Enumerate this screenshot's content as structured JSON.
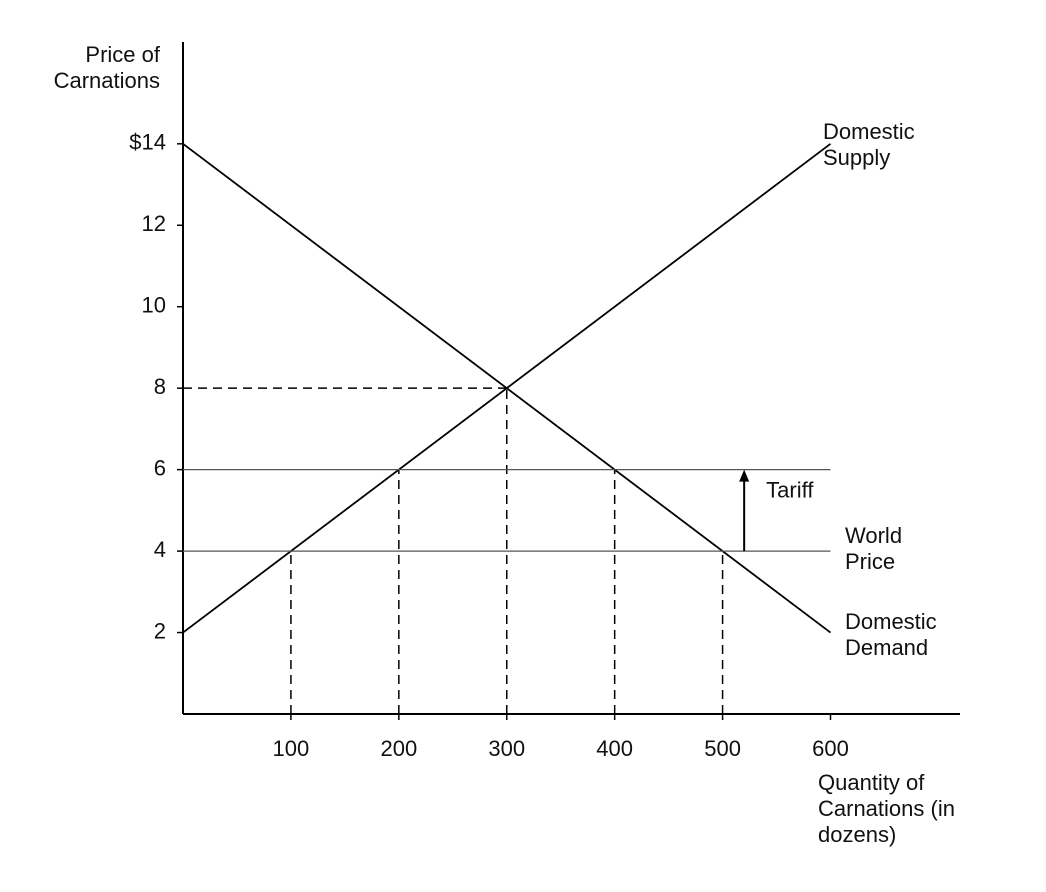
{
  "chart_data": {
    "type": "line",
    "y_label": "Price of Carnations",
    "x_label": "Quantity of Carnations (in dozens)",
    "xlim": [
      0,
      720
    ],
    "ylim": [
      0,
      16.5
    ],
    "xticks": [
      100,
      200,
      300,
      400,
      500,
      600
    ],
    "yticks": [
      2,
      4,
      6,
      8,
      10,
      12,
      {
        "value": 14,
        "label": "$14"
      }
    ],
    "series": [
      {
        "name": "Domestic Supply",
        "color": "#000000",
        "x": [
          0,
          600
        ],
        "values": [
          2,
          14
        ]
      },
      {
        "name": "Domestic Demand",
        "color": "#000000",
        "x": [
          0,
          600
        ],
        "values": [
          14,
          2
        ]
      },
      {
        "name": "World Price",
        "color": "#555555",
        "x": [
          0,
          600
        ],
        "values": [
          4,
          4
        ]
      },
      {
        "color": "#555555",
        "x": [
          0,
          600
        ],
        "values": [
          6,
          6
        ]
      }
    ],
    "guides": [
      {
        "x": [
          0,
          300
        ],
        "values": [
          8,
          8
        ]
      },
      {
        "x": [
          300,
          300
        ],
        "values": [
          0,
          8
        ]
      },
      {
        "x": [
          100,
          100
        ],
        "values": [
          0,
          4
        ]
      },
      {
        "x": [
          200,
          200
        ],
        "values": [
          0,
          6
        ]
      },
      {
        "x": [
          400,
          400
        ],
        "values": [
          0,
          6
        ]
      },
      {
        "x": [
          500,
          500
        ],
        "values": [
          0,
          4
        ]
      }
    ],
    "annotation": {
      "text": "Tariff",
      "from": 4,
      "to": 6
    }
  }
}
